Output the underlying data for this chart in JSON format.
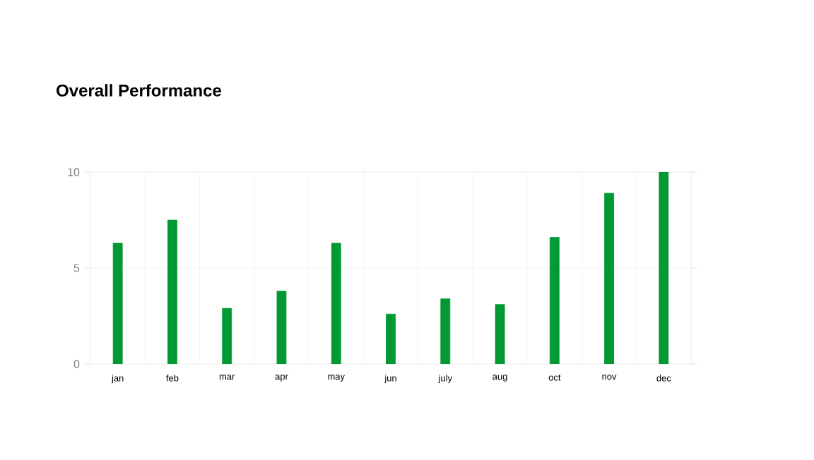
{
  "chart_data": {
    "type": "bar",
    "title": "Overall Performance",
    "categories": [
      "jan",
      "feb",
      "mar",
      "apr",
      "may",
      "jun",
      "july",
      "aug",
      "oct",
      "nov",
      "dec"
    ],
    "values": [
      6.3,
      7.5,
      2.9,
      3.8,
      6.3,
      2.6,
      3.4,
      3.1,
      6.6,
      8.9,
      10
    ],
    "color": "#009933",
    "ylim": [
      0,
      10
    ],
    "yticks": [
      0,
      5,
      10
    ],
    "grid": true
  }
}
